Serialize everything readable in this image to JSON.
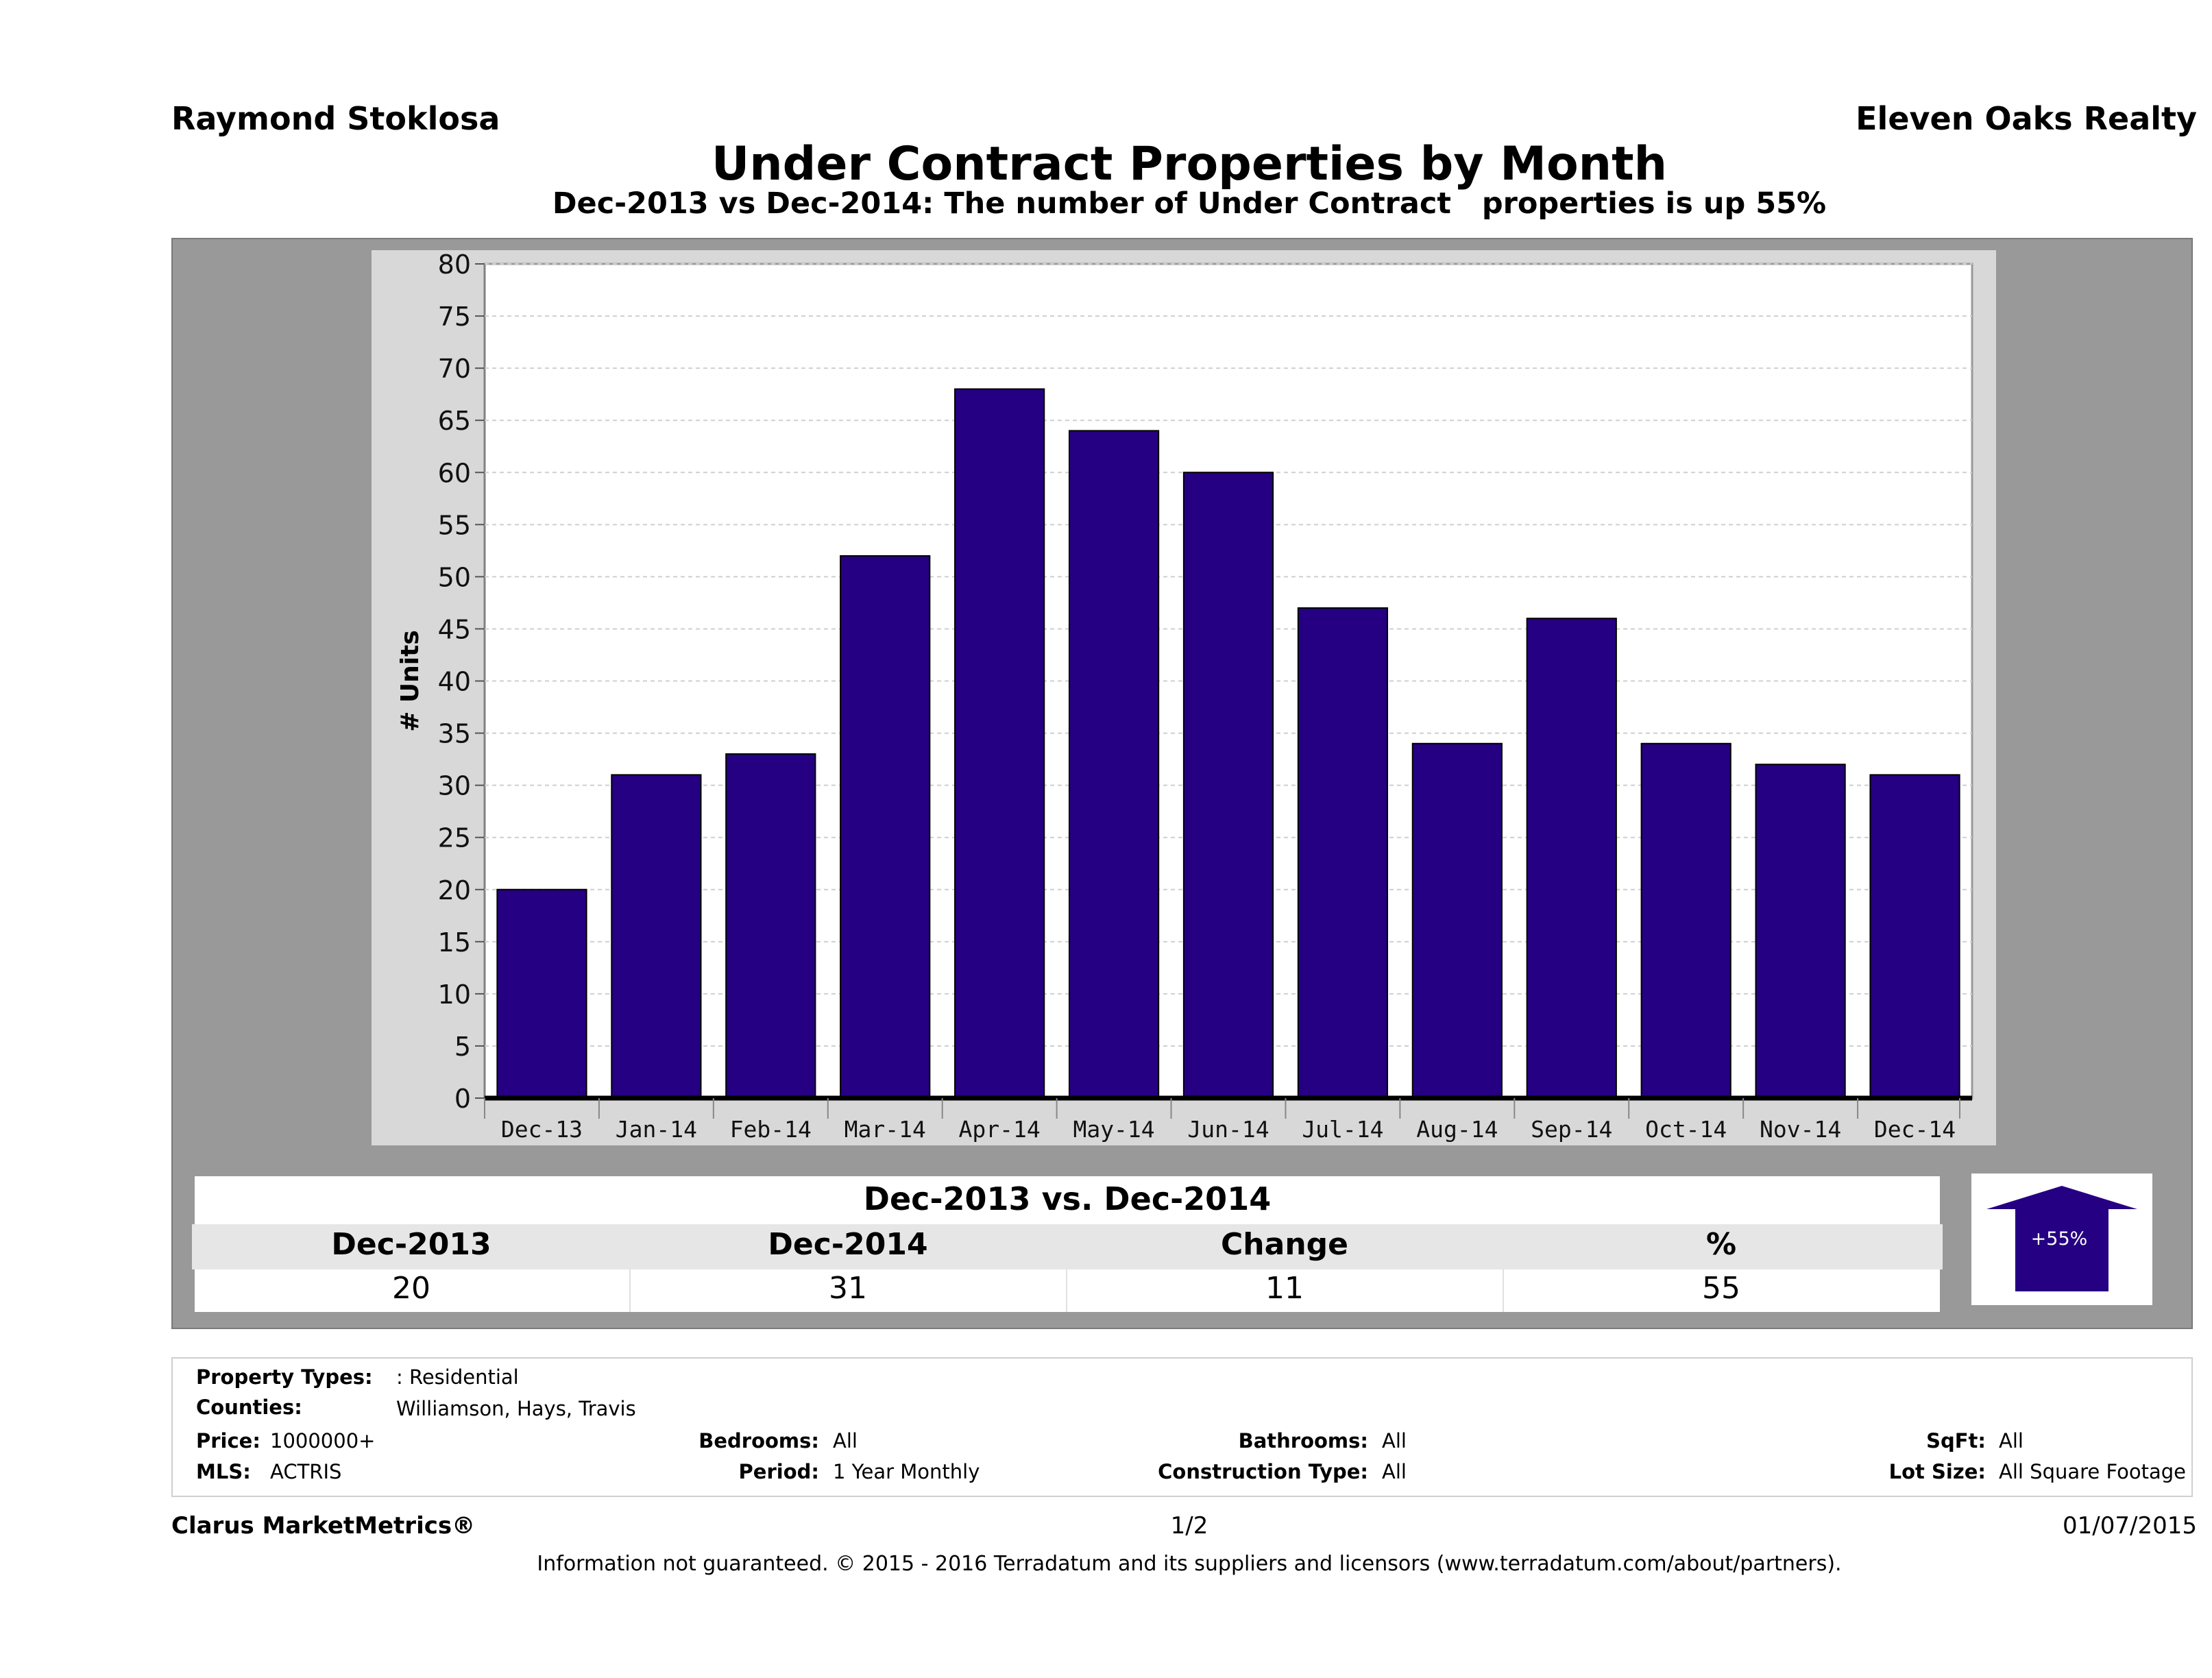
{
  "header": {
    "agent": "Raymond Stoklosa",
    "company": "Eleven Oaks Realty",
    "title": "Under Contract Properties by Month",
    "subtitle": "Dec-2013 vs Dec-2014: The number of Under Contract   properties is up 55%"
  },
  "chart_data": {
    "type": "bar",
    "categories": [
      "Dec-13",
      "Jan-14",
      "Feb-14",
      "Mar-14",
      "Apr-14",
      "May-14",
      "Jun-14",
      "Jul-14",
      "Aug-14",
      "Sep-14",
      "Oct-14",
      "Nov-14",
      "Dec-14"
    ],
    "values": [
      20,
      31,
      33,
      52,
      68,
      64,
      60,
      47,
      34,
      46,
      34,
      32,
      31
    ],
    "ylabel": "# Units",
    "xlabel": "",
    "ylim": [
      0,
      80
    ],
    "yticks": [
      0,
      5,
      10,
      15,
      20,
      25,
      30,
      35,
      40,
      45,
      50,
      55,
      60,
      65,
      70,
      75,
      80
    ],
    "grid": true,
    "bar_color": "#260082"
  },
  "comparison": {
    "title": "Dec-2013 vs. Dec-2014",
    "headers": [
      "Dec-2013",
      "Dec-2014",
      "Change",
      "%"
    ],
    "values": [
      "20",
      "31",
      "11",
      "55"
    ],
    "badge": "+55%",
    "arrow_color": "#260082"
  },
  "filters": {
    "property_types_label": "Property Types:",
    "property_types_value": ": Residential",
    "counties_label": "Counties:",
    "counties_value": "Williamson, Hays, Travis",
    "price_label": "Price:",
    "price_value": "1000000+",
    "mls_label": "MLS:",
    "mls_value": "ACTRIS",
    "bedrooms_label": "Bedrooms:",
    "bedrooms_value": "All",
    "period_label": "Period:",
    "period_value": "1 Year Monthly",
    "bathrooms_label": "Bathrooms:",
    "bathrooms_value": "All",
    "construction_label": "Construction Type:",
    "construction_value": "All",
    "sqft_label": "SqFt:",
    "sqft_value": "All",
    "lot_label": "Lot Size:",
    "lot_value": "All Square Footage"
  },
  "footer": {
    "brand": "Clarus MarketMetrics®",
    "page": "1/2",
    "date": "01/07/2015",
    "disclaimer": "Information not guaranteed. © 2015 - 2016 Terradatum and its suppliers and licensors (www.terradatum.com/about/partners)."
  }
}
